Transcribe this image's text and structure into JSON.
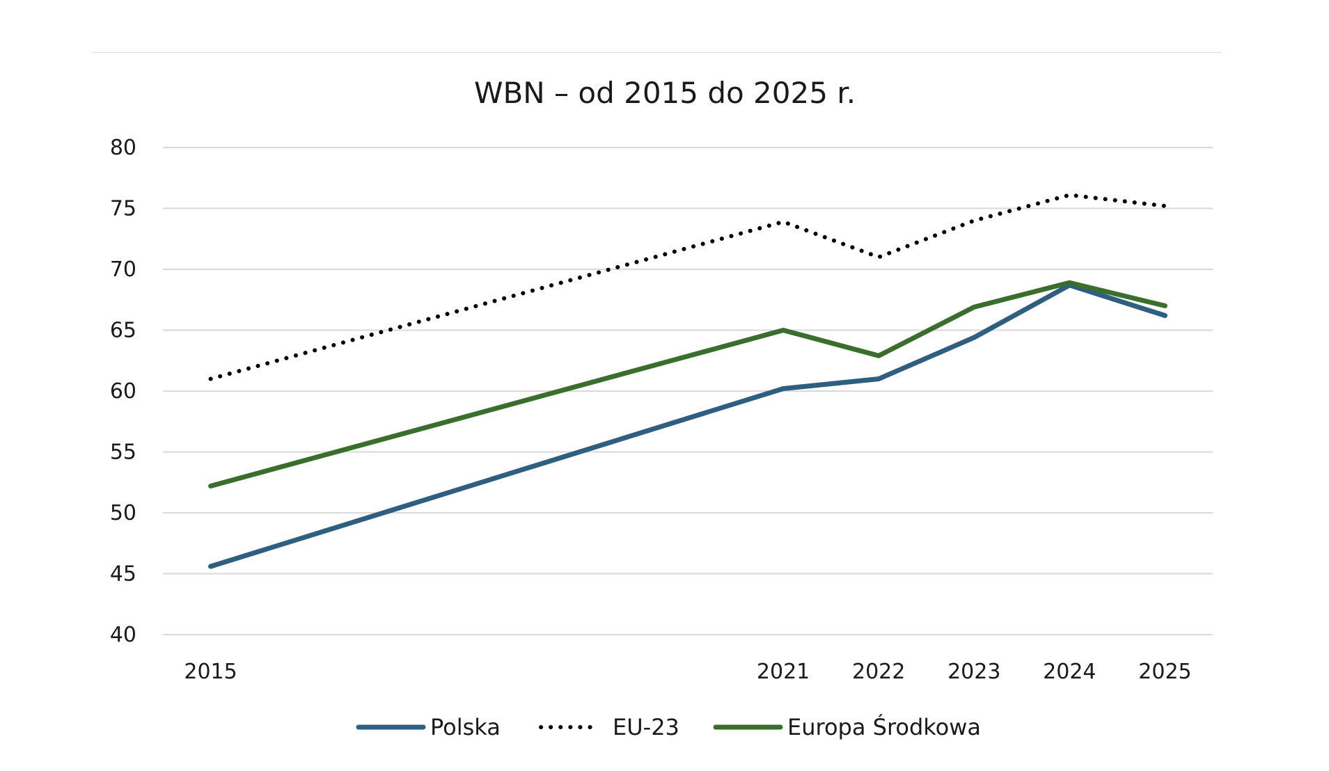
{
  "chart_data": {
    "type": "line",
    "title": "WBN – od 2015 do 2025 r.",
    "xlabel": "",
    "ylabel": "",
    "categories": [
      "2015",
      "2021",
      "2022",
      "2023",
      "2024",
      "2025"
    ],
    "x": [
      2015,
      2021,
      2022,
      2023,
      2024,
      2025
    ],
    "ylim": [
      40,
      80
    ],
    "yticks": [
      40,
      45,
      50,
      55,
      60,
      65,
      70,
      75,
      80
    ],
    "grid": true,
    "legend": "bottom-center",
    "series": [
      {
        "name": "Polska",
        "values": [
          45.6,
          60.2,
          61.0,
          64.4,
          68.7,
          66.2
        ],
        "color": "#2e5f80",
        "style": "solid"
      },
      {
        "name": "EU-23",
        "values": [
          61.0,
          73.9,
          71.0,
          74.0,
          76.1,
          75.2
        ],
        "color": "#000000",
        "style": "dotted"
      },
      {
        "name": "Europa Środkowa",
        "values": [
          52.2,
          65.0,
          62.9,
          66.9,
          68.9,
          67.0
        ],
        "color": "#3a6e2c",
        "style": "solid"
      }
    ]
  }
}
